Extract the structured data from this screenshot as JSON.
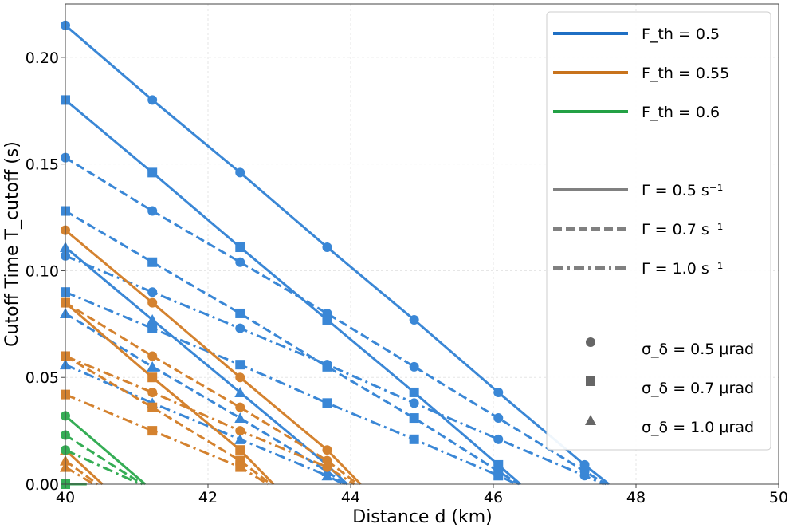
{
  "chart_data": {
    "type": "line",
    "xlabel": "Distance d (km)",
    "ylabel": "Cutoff Time T_cutoff (s)",
    "xlim": [
      40,
      50
    ],
    "ylim": [
      0,
      0.225
    ],
    "x_ticks": [
      "40",
      "42",
      "44",
      "46",
      "48",
      "50"
    ],
    "y_ticks": [
      "0.00",
      "0.05",
      "0.10",
      "0.15",
      "0.20"
    ],
    "x_tick_values": [
      40,
      42,
      44,
      46,
      48,
      50
    ],
    "y_tick_values": [
      0,
      0.05,
      0.1,
      0.15,
      0.2
    ],
    "grid": true,
    "legend_position": "upper right",
    "colors": {
      "F_th = 0.5": "#3a87d6",
      "F_th = 0.55": "#d4822f",
      "F_th = 0.6": "#35ad55"
    },
    "legend": {
      "color_entries": [
        {
          "label": "F_th = 0.5",
          "color": "#1f6fc4"
        },
        {
          "label": "F_th = 0.55",
          "color": "#c8731c"
        },
        {
          "label": "F_th = 0.6",
          "color": "#23a145"
        }
      ],
      "style_entries": [
        {
          "label": "Γ = 0.5 s⁻¹",
          "dash": "solid"
        },
        {
          "label": "Γ = 0.7 s⁻¹",
          "dash": "dashed"
        },
        {
          "label": "Γ = 1.0 s⁻¹",
          "dash": "dashdot"
        }
      ],
      "marker_entries": [
        {
          "label": "σ_δ = 0.5 μrad",
          "marker": "circle"
        },
        {
          "label": "σ_δ = 0.7 μrad",
          "marker": "square"
        },
        {
          "label": "σ_δ = 1.0 μrad",
          "marker": "triangle"
        }
      ]
    },
    "series": [
      {
        "F_th": "0.5",
        "Gamma": "0.5",
        "sigma": "0.5",
        "color": "#3a87d6",
        "dash": "solid",
        "marker": "circle",
        "x": [
          40.0,
          41.22,
          42.45,
          43.67,
          44.89,
          46.07,
          47.28,
          47.62
        ],
        "y": [
          0.215,
          0.18,
          0.146,
          0.111,
          0.077,
          0.043,
          0.009,
          0.0
        ]
      },
      {
        "F_th": "0.5",
        "Gamma": "0.5",
        "sigma": "0.7",
        "color": "#3a87d6",
        "dash": "solid",
        "marker": "square",
        "x": [
          40.0,
          41.22,
          42.45,
          43.67,
          44.89,
          46.07,
          46.38
        ],
        "y": [
          0.18,
          0.146,
          0.111,
          0.077,
          0.043,
          0.009,
          0.0
        ]
      },
      {
        "F_th": "0.5",
        "Gamma": "0.5",
        "sigma": "1.0",
        "color": "#3a87d6",
        "dash": "solid",
        "marker": "triangle",
        "x": [
          40.0,
          41.22,
          42.45,
          43.67,
          43.95
        ],
        "y": [
          0.111,
          0.077,
          0.043,
          0.009,
          0.0
        ]
      },
      {
        "F_th": "0.5",
        "Gamma": "0.7",
        "sigma": "0.5",
        "color": "#3a87d6",
        "dash": "dashed",
        "marker": "circle",
        "x": [
          40.0,
          41.22,
          42.45,
          43.67,
          44.89,
          46.07,
          47.28,
          47.58
        ],
        "y": [
          0.153,
          0.128,
          0.104,
          0.08,
          0.055,
          0.031,
          0.006,
          0.0
        ]
      },
      {
        "F_th": "0.5",
        "Gamma": "0.7",
        "sigma": "0.7",
        "color": "#3a87d6",
        "dash": "dashed",
        "marker": "square",
        "x": [
          40.0,
          41.22,
          42.45,
          43.67,
          44.89,
          46.07,
          46.36
        ],
        "y": [
          0.128,
          0.104,
          0.08,
          0.055,
          0.031,
          0.006,
          0.0
        ]
      },
      {
        "F_th": "0.5",
        "Gamma": "0.7",
        "sigma": "1.0",
        "color": "#3a87d6",
        "dash": "dashed",
        "marker": "triangle",
        "x": [
          40.0,
          41.22,
          42.45,
          43.67,
          43.92
        ],
        "y": [
          0.08,
          0.055,
          0.031,
          0.006,
          0.0
        ]
      },
      {
        "F_th": "0.5",
        "Gamma": "1.0",
        "sigma": "0.5",
        "color": "#3a87d6",
        "dash": "dashdot",
        "marker": "circle",
        "x": [
          40.0,
          41.22,
          42.45,
          43.67,
          44.89,
          46.07,
          47.28,
          47.55
        ],
        "y": [
          0.107,
          0.09,
          0.073,
          0.056,
          0.038,
          0.021,
          0.004,
          0.0
        ]
      },
      {
        "F_th": "0.5",
        "Gamma": "1.0",
        "sigma": "0.7",
        "color": "#3a87d6",
        "dash": "dashdot",
        "marker": "square",
        "x": [
          40.0,
          41.22,
          42.45,
          43.67,
          44.89,
          46.07,
          46.33
        ],
        "y": [
          0.09,
          0.073,
          0.056,
          0.038,
          0.021,
          0.004,
          0.0
        ]
      },
      {
        "F_th": "0.5",
        "Gamma": "1.0",
        "sigma": "1.0",
        "color": "#3a87d6",
        "dash": "dashdot",
        "marker": "triangle",
        "x": [
          40.0,
          41.22,
          42.45,
          43.67,
          43.9
        ],
        "y": [
          0.056,
          0.038,
          0.021,
          0.004,
          0.0
        ]
      },
      {
        "F_th": "0.55",
        "Gamma": "0.5",
        "sigma": "0.5",
        "color": "#d4822f",
        "dash": "solid",
        "marker": "circle",
        "x": [
          40.0,
          41.22,
          42.45,
          43.67,
          44.14
        ],
        "y": [
          0.119,
          0.085,
          0.05,
          0.016,
          0.0
        ]
      },
      {
        "F_th": "0.55",
        "Gamma": "0.5",
        "sigma": "0.7",
        "color": "#d4822f",
        "dash": "solid",
        "marker": "square",
        "x": [
          40.0,
          41.22,
          42.45,
          42.92
        ],
        "y": [
          0.085,
          0.05,
          0.016,
          0.0
        ]
      },
      {
        "F_th": "0.55",
        "Gamma": "0.5",
        "sigma": "1.0",
        "color": "#d4822f",
        "dash": "solid",
        "marker": "triangle",
        "x": [
          40.0,
          40.52
        ],
        "y": [
          0.016,
          0.0
        ]
      },
      {
        "F_th": "0.55",
        "Gamma": "0.7",
        "sigma": "0.5",
        "color": "#d4822f",
        "dash": "dashed",
        "marker": "circle",
        "x": [
          40.0,
          41.22,
          42.45,
          43.67,
          44.1
        ],
        "y": [
          0.085,
          0.06,
          0.036,
          0.011,
          0.0
        ]
      },
      {
        "F_th": "0.55",
        "Gamma": "0.7",
        "sigma": "0.7",
        "color": "#d4822f",
        "dash": "dashed",
        "marker": "square",
        "x": [
          40.0,
          41.22,
          42.45,
          42.88
        ],
        "y": [
          0.06,
          0.036,
          0.011,
          0.0
        ]
      },
      {
        "F_th": "0.55",
        "Gamma": "0.7",
        "sigma": "1.0",
        "color": "#d4822f",
        "dash": "dashed",
        "marker": "triangle",
        "x": [
          40.0,
          40.45
        ],
        "y": [
          0.011,
          0.0
        ]
      },
      {
        "F_th": "0.55",
        "Gamma": "1.0",
        "sigma": "0.5",
        "color": "#d4822f",
        "dash": "dashdot",
        "marker": "circle",
        "x": [
          40.0,
          41.22,
          42.45,
          43.67,
          44.05
        ],
        "y": [
          0.06,
          0.043,
          0.025,
          0.008,
          0.0
        ]
      },
      {
        "F_th": "0.55",
        "Gamma": "1.0",
        "sigma": "0.7",
        "color": "#d4822f",
        "dash": "dashdot",
        "marker": "square",
        "x": [
          40.0,
          41.22,
          42.45,
          42.84
        ],
        "y": [
          0.042,
          0.025,
          0.008,
          0.0
        ]
      },
      {
        "F_th": "0.55",
        "Gamma": "1.0",
        "sigma": "1.0",
        "color": "#d4822f",
        "dash": "dashdot",
        "marker": "triangle",
        "x": [
          40.0,
          40.4
        ],
        "y": [
          0.008,
          0.0
        ]
      },
      {
        "F_th": "0.6",
        "Gamma": "0.5",
        "sigma": "0.5",
        "color": "#35ad55",
        "dash": "solid",
        "marker": "circle",
        "x": [
          40.0,
          41.12
        ],
        "y": [
          0.032,
          0.0
        ]
      },
      {
        "F_th": "0.6",
        "Gamma": "0.5",
        "sigma": "0.7",
        "color": "#35ad55",
        "dash": "solid",
        "marker": "square",
        "x": [
          40.0,
          40.3
        ],
        "y": [
          0.0,
          0.0
        ]
      },
      {
        "F_th": "0.6",
        "Gamma": "0.7",
        "sigma": "0.5",
        "color": "#35ad55",
        "dash": "dashed",
        "marker": "circle",
        "x": [
          40.0,
          41.08
        ],
        "y": [
          0.023,
          0.0
        ]
      },
      {
        "F_th": "0.6",
        "Gamma": "1.0",
        "sigma": "0.5",
        "color": "#35ad55",
        "dash": "dashdot",
        "marker": "circle",
        "x": [
          40.0,
          41.05
        ],
        "y": [
          0.016,
          0.0
        ]
      }
    ]
  }
}
